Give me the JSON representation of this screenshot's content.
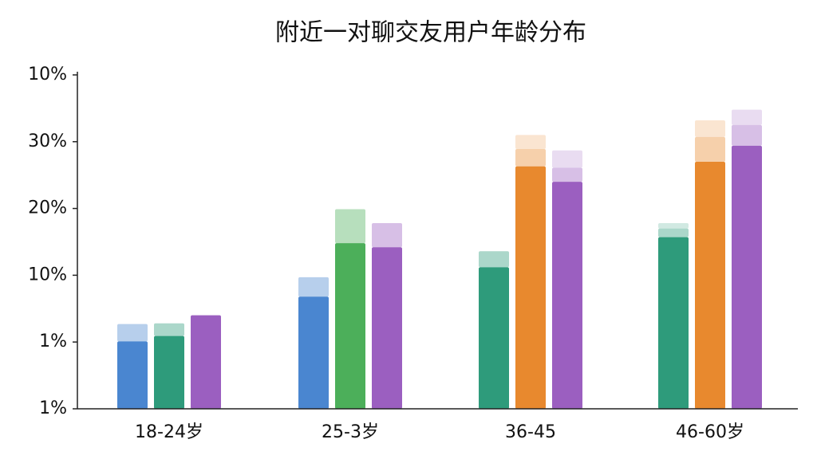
{
  "chart_data": {
    "type": "bar",
    "title": "附近一对聊交友用户年龄分布",
    "categories": [
      "18-24岁",
      "25-3岁",
      "36-45",
      "46-60岁"
    ],
    "ylim": [
      0,
      5
    ],
    "yticks": [
      {
        "value": 0,
        "label": "1%"
      },
      {
        "value": 1,
        "label": "1%"
      },
      {
        "value": 2,
        "label": "10%"
      },
      {
        "value": 3,
        "label": "20%"
      },
      {
        "value": 4,
        "label": "30%"
      },
      {
        "value": 5,
        "label": "10%"
      }
    ],
    "series": [
      {
        "colors": [
          "#4a86d0",
          "#4a86d0",
          "#2e9b7b",
          "#2e9b7b"
        ],
        "values": [
          1.01,
          1.68,
          2.12,
          2.57
        ],
        "layer2": [
          0.26,
          0.29,
          0.24,
          0.13
        ],
        "layer3": [
          null,
          null,
          null,
          0.08
        ]
      },
      {
        "colors": [
          "#2e9b7b",
          "#4caf5a",
          "#e8892e",
          "#e8892e"
        ],
        "values": [
          1.09,
          2.48,
          3.63,
          3.7
        ],
        "layer2": [
          0.19,
          0.51,
          0.26,
          0.37
        ],
        "layer3": [
          null,
          null,
          0.21,
          0.25
        ]
      },
      {
        "colors": [
          "#9b5fc0",
          "#9b5fc0",
          "#9b5fc0",
          "#9b5fc0"
        ],
        "values": [
          1.4,
          2.42,
          3.4,
          3.94
        ],
        "layer2": [
          null,
          0.36,
          0.21,
          0.31
        ],
        "layer3": [
          null,
          null,
          0.26,
          0.23
        ]
      }
    ]
  }
}
